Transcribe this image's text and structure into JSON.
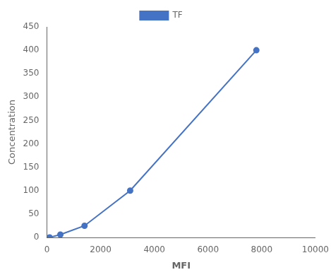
{
  "chart_data": {
    "type": "line",
    "x": [
      100,
      500,
      1400,
      3100,
      7800
    ],
    "series": [
      {
        "name": "TF",
        "color": "#4472C4",
        "marker": "circle",
        "values": [
          0,
          6,
          25,
          100,
          400
        ]
      }
    ],
    "xlabel": "MFI",
    "ylabel": "Concentration",
    "xlim": [
      0,
      10000
    ],
    "ylim": [
      0,
      450
    ],
    "xticks": [
      0,
      2000,
      4000,
      6000,
      8000,
      10000
    ],
    "yticks": [
      0,
      50,
      100,
      150,
      200,
      250,
      300,
      350,
      400,
      450
    ],
    "grid": false,
    "legend": "top"
  }
}
